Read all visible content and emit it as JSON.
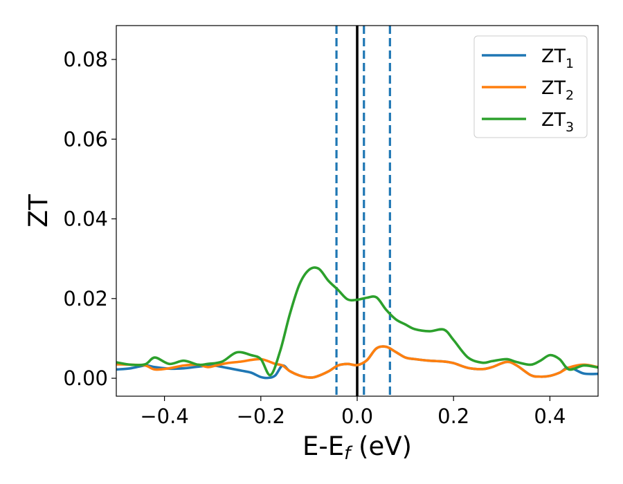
{
  "chart_data": {
    "type": "line",
    "xlabel": {
      "main": "E-E",
      "sub": "f",
      "unit": " (eV)"
    },
    "ylabel": "ZT",
    "xlim": [
      -0.5,
      0.5
    ],
    "ylim": [
      -0.0045,
      0.0885
    ],
    "xticks": [
      -0.4,
      -0.2,
      0.0,
      0.2,
      0.4
    ],
    "xtick_labels": [
      "−0.4",
      "−0.2",
      "0.0",
      "0.2",
      "0.4"
    ],
    "yticks": [
      0.0,
      0.02,
      0.04,
      0.06,
      0.08
    ],
    "ytick_labels": [
      "0.00",
      "0.02",
      "0.04",
      "0.06",
      "0.08"
    ],
    "grid": false,
    "legend_position": "top-right",
    "vertical_lines": [
      {
        "x": 0.0,
        "style": "solid",
        "color": "#000000"
      },
      {
        "x": -0.043,
        "style": "dashed",
        "color": "#1f77b4"
      },
      {
        "x": 0.014,
        "style": "dashed",
        "color": "#1f77b4"
      },
      {
        "x": 0.068,
        "style": "dashed",
        "color": "#1f77b4"
      }
    ],
    "series": [
      {
        "name": "ZT",
        "sub": "1",
        "color": "#1f77b4",
        "x": [
          -0.5,
          -0.47,
          -0.44,
          -0.42,
          -0.39,
          -0.36,
          -0.33,
          -0.3,
          -0.27,
          -0.24,
          -0.22,
          -0.2,
          -0.185,
          -0.17,
          -0.155,
          -0.14,
          -0.12,
          -0.1,
          -0.085,
          -0.06,
          -0.04,
          -0.02,
          0.0,
          0.02,
          0.04,
          0.06,
          0.08,
          0.1,
          0.12,
          0.15,
          0.18,
          0.2,
          0.23,
          0.26,
          0.28,
          0.31,
          0.33,
          0.36,
          0.38,
          0.4,
          0.42,
          0.44,
          0.47,
          0.5
        ],
        "y": [
          0.0022,
          0.0025,
          0.0032,
          0.0028,
          0.0024,
          0.0025,
          0.0029,
          0.0032,
          0.0026,
          0.0019,
          0.0014,
          0.0003,
          0.0001,
          0.0007,
          0.0032,
          0.0018,
          0.0007,
          0.0002,
          0.0004,
          0.0017,
          0.0032,
          0.0036,
          0.0033,
          0.0045,
          0.0075,
          0.0079,
          0.0066,
          0.0052,
          0.0048,
          0.0044,
          0.0042,
          0.0038,
          0.0026,
          0.0023,
          0.0028,
          0.0041,
          0.0033,
          0.0008,
          0.0004,
          0.0006,
          0.0014,
          0.0027,
          0.0012,
          0.0011
        ]
      },
      {
        "name": "ZT",
        "sub": "2",
        "color": "#ff7f0e",
        "x": [
          -0.5,
          -0.47,
          -0.44,
          -0.42,
          -0.39,
          -0.36,
          -0.33,
          -0.31,
          -0.29,
          -0.27,
          -0.24,
          -0.22,
          -0.2,
          -0.185,
          -0.17,
          -0.155,
          -0.14,
          -0.12,
          -0.1,
          -0.085,
          -0.06,
          -0.04,
          -0.02,
          0.0,
          0.02,
          0.04,
          0.06,
          0.08,
          0.1,
          0.12,
          0.15,
          0.18,
          0.2,
          0.23,
          0.26,
          0.28,
          0.31,
          0.33,
          0.36,
          0.38,
          0.4,
          0.42,
          0.44,
          0.47,
          0.5
        ],
        "y": [
          0.0035,
          0.0034,
          0.0032,
          0.0022,
          0.0025,
          0.0032,
          0.0034,
          0.0028,
          0.0033,
          0.0038,
          0.0042,
          0.0046,
          0.0048,
          0.0043,
          0.0036,
          0.0032,
          0.0018,
          0.0007,
          0.0002,
          0.0004,
          0.0017,
          0.0032,
          0.0036,
          0.0033,
          0.0045,
          0.0075,
          0.0079,
          0.0066,
          0.0052,
          0.0048,
          0.0044,
          0.0042,
          0.0038,
          0.0026,
          0.0023,
          0.0028,
          0.0041,
          0.0033,
          0.0008,
          0.0004,
          0.0006,
          0.0014,
          0.0027,
          0.0034,
          0.0028
        ]
      },
      {
        "name": "ZT",
        "sub": "3",
        "color": "#2ca02c",
        "x": [
          -0.5,
          -0.47,
          -0.44,
          -0.42,
          -0.39,
          -0.36,
          -0.33,
          -0.31,
          -0.28,
          -0.25,
          -0.22,
          -0.2,
          -0.18,
          -0.16,
          -0.14,
          -0.12,
          -0.1,
          -0.08,
          -0.06,
          -0.04,
          -0.02,
          0.0,
          0.02,
          0.04,
          0.06,
          0.08,
          0.1,
          0.12,
          0.15,
          0.18,
          0.2,
          0.23,
          0.26,
          0.28,
          0.31,
          0.33,
          0.36,
          0.38,
          0.4,
          0.42,
          0.44,
          0.47,
          0.5
        ],
        "y": [
          0.004,
          0.0034,
          0.0035,
          0.0052,
          0.0036,
          0.0044,
          0.0034,
          0.0036,
          0.0042,
          0.0065,
          0.0058,
          0.0048,
          0.0008,
          0.0068,
          0.016,
          0.0235,
          0.0272,
          0.0275,
          0.0245,
          0.0222,
          0.0198,
          0.0197,
          0.0202,
          0.0203,
          0.0172,
          0.0148,
          0.0135,
          0.0123,
          0.0118,
          0.0122,
          0.0096,
          0.0052,
          0.0039,
          0.0043,
          0.0048,
          0.0041,
          0.0034,
          0.0044,
          0.0058,
          0.0048,
          0.0022,
          0.0032,
          0.0027
        ]
      }
    ]
  }
}
